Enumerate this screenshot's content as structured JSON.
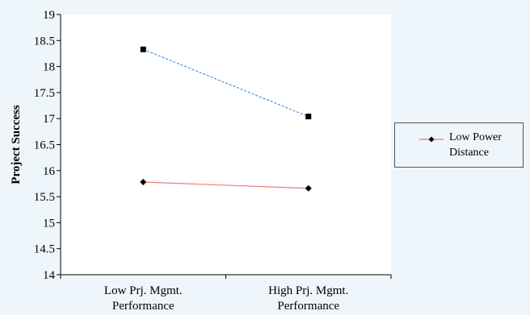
{
  "chart_data": {
    "type": "line",
    "title": "",
    "xlabel": "",
    "ylabel": "Project Success",
    "categories": [
      "Low Prj. Mgmt. Performance",
      "High Prj. Mgmt. Performance"
    ],
    "ylim": [
      14,
      19
    ],
    "yticks": [
      "14",
      "14.5",
      "15",
      "15.5",
      "16",
      "16.5",
      "17",
      "17.5",
      "18",
      "18.5",
      "19"
    ],
    "grid": false,
    "legend_position": "right",
    "series": [
      {
        "name": "Low Power Distance",
        "values": [
          15.78,
          15.66
        ],
        "color": "#f07a7a",
        "marker": "diamond",
        "dash": false
      },
      {
        "values": [
          18.33,
          17.04
        ],
        "color": "#4f8fdc",
        "marker": "square",
        "dash": true
      }
    ]
  }
}
